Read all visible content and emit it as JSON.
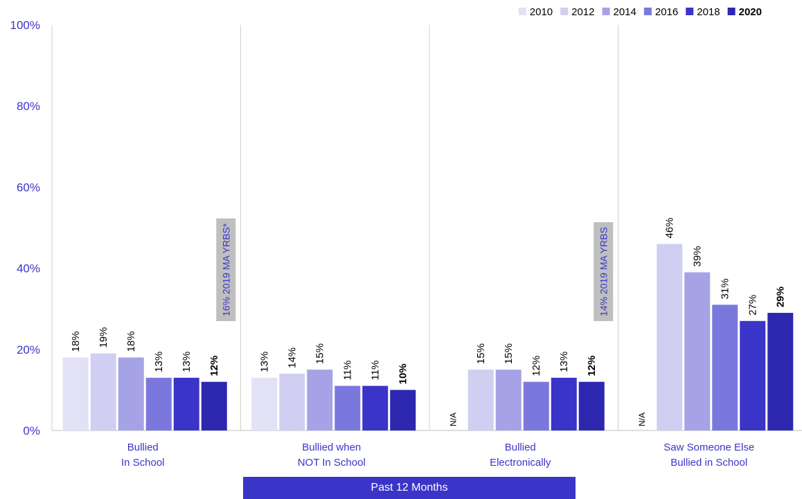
{
  "chart_data": {
    "type": "bar",
    "categories": [
      [
        "Bullied",
        "In School"
      ],
      [
        "Bullied when",
        "NOT In School"
      ],
      [
        "Bullied",
        "Electronically"
      ],
      [
        "Saw Someone Else",
        "Bullied in School"
      ]
    ],
    "series": [
      {
        "name": "2010",
        "color": "#e2e1f5",
        "values": [
          18,
          13,
          null,
          null
        ]
      },
      {
        "name": "2012",
        "color": "#d0cff1",
        "values": [
          19,
          14,
          15,
          46
        ]
      },
      {
        "name": "2014",
        "color": "#a5a3e6",
        "values": [
          18,
          15,
          15,
          39
        ]
      },
      {
        "name": "2016",
        "color": "#7b78dd",
        "values": [
          13,
          11,
          12,
          31
        ]
      },
      {
        "name": "2018",
        "color": "#3b34c8",
        "values": [
          13,
          11,
          13,
          27
        ]
      },
      {
        "name": "2020",
        "color": "#2d27b0",
        "values": [
          12,
          10,
          12,
          29
        ],
        "bold": true
      }
    ],
    "na_text": "N/A",
    "yticks": [
      "0%",
      "20%",
      "40%",
      "60%",
      "80%",
      "100%"
    ],
    "ylim": [
      0,
      100
    ],
    "legend_position": "top-right",
    "reference_labels": [
      {
        "category_index": 0,
        "text": "16% 2019 MA YRBS*"
      },
      {
        "category_index": 2,
        "text": "14% 2019 MA YRBS"
      }
    ]
  },
  "period_label": "Past 12 Months"
}
